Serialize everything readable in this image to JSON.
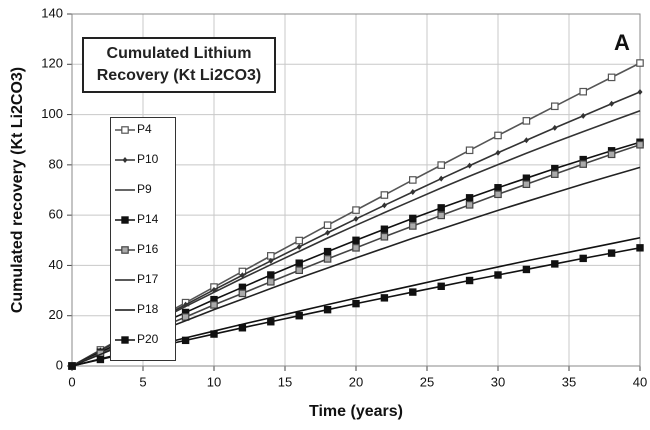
{
  "chart_data": {
    "type": "line",
    "title": "Cumulated Lithium Recovery (Kt Li2CO3)",
    "annotation": "A",
    "x_label": "Time (years)",
    "y_label": "Cumulated recovery (Kt  Li2CO3)",
    "xlim": [
      0,
      40
    ],
    "xticks": [
      0,
      5,
      10,
      15,
      20,
      25,
      30,
      35,
      40
    ],
    "ylim": [
      0,
      140
    ],
    "yticks": [
      0,
      20,
      40,
      60,
      80,
      100,
      120,
      140
    ],
    "grid": true,
    "x": [
      0,
      2,
      4,
      6,
      8,
      10,
      12,
      14,
      16,
      18,
      20,
      22,
      24,
      26,
      28,
      30,
      32,
      34,
      36,
      38,
      40
    ],
    "series": [
      {
        "name": "P4",
        "color": "#555555",
        "marker": "square-open",
        "values": [
          0,
          6.4,
          12.7,
          19.0,
          25.2,
          31.4,
          37.6,
          43.8,
          49.9,
          56.0,
          62.0,
          68.0,
          74.0,
          79.9,
          85.8,
          91.7,
          97.5,
          103.3,
          109.1,
          114.8,
          120.5
        ]
      },
      {
        "name": "P10",
        "color": "#333333",
        "marker": "diamond",
        "values": [
          0,
          6.2,
          12.3,
          18.4,
          24.4,
          30.3,
          36.1,
          41.8,
          47.4,
          53.0,
          58.5,
          63.9,
          69.2,
          74.5,
          79.7,
          84.8,
          89.8,
          94.7,
          99.5,
          104.3,
          109
        ]
      },
      {
        "name": "P9",
        "color": "#333333",
        "marker": "none",
        "values": [
          0,
          6.1,
          12.0,
          17.9,
          23.7,
          29.3,
          34.9,
          40.3,
          45.6,
          50.9,
          56.0,
          61.0,
          65.9,
          70.8,
          75.5,
          80.1,
          84.6,
          89.0,
          93.2,
          97.4,
          101.5
        ]
      },
      {
        "name": "P14",
        "color": "#111111",
        "marker": "square",
        "values": [
          0,
          5.5,
          10.9,
          16.2,
          21.3,
          26.4,
          31.3,
          36.2,
          40.9,
          45.5,
          50.0,
          54.4,
          58.7,
          62.9,
          66.9,
          70.9,
          74.7,
          78.5,
          82.1,
          85.6,
          89
        ]
      },
      {
        "name": "P16",
        "color": "#444444",
        "marker": "square-grey",
        "values": [
          0,
          5.0,
          9.9,
          14.7,
          19.5,
          24.3,
          28.9,
          33.5,
          38.1,
          42.6,
          47,
          51.4,
          55.7,
          59.9,
          64.1,
          68.3,
          72.3,
          76.3,
          80.3,
          84.2,
          88
        ]
      },
      {
        "name": "P17",
        "color": "#222222",
        "marker": "none",
        "values": [
          0,
          4.6,
          9.2,
          13.6,
          18.0,
          22.4,
          26.6,
          30.8,
          35.0,
          39.0,
          43,
          46.9,
          50.8,
          54.5,
          58.2,
          61.9,
          65.4,
          68.9,
          72.4,
          75.7,
          79
        ]
      },
      {
        "name": "P18",
        "color": "#111111",
        "marker": "none",
        "values": [
          0,
          2.8,
          5.6,
          8.4,
          11.2,
          13.9,
          16.6,
          19.2,
          21.8,
          24.4,
          27,
          29.5,
          32.0,
          34.5,
          37.0,
          39.4,
          41.8,
          44.1,
          46.4,
          48.7,
          51
        ]
      },
      {
        "name": "P20",
        "color": "#111111",
        "marker": "square",
        "values": [
          0,
          2.6,
          5.2,
          7.7,
          10.2,
          12.7,
          15.2,
          17.6,
          20.0,
          22.4,
          24.8,
          27.1,
          29.4,
          31.7,
          34.0,
          36.2,
          38.4,
          40.6,
          42.8,
          44.9,
          47.0
        ]
      }
    ]
  }
}
